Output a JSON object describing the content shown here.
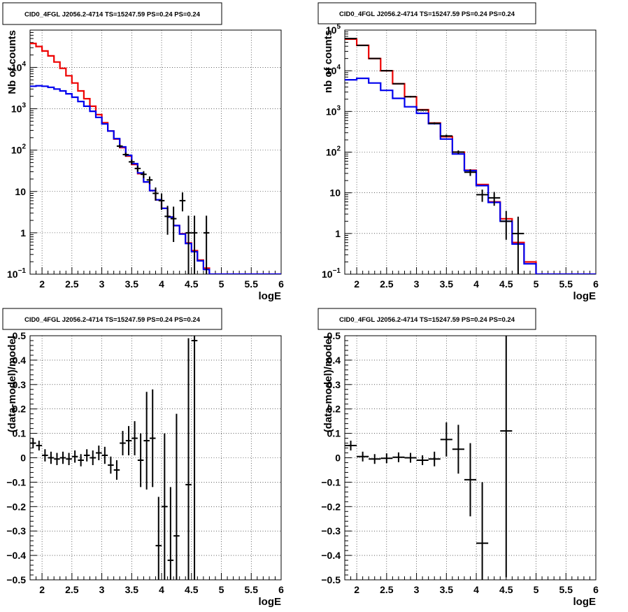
{
  "chart_data": [
    {
      "type": "line",
      "title": "CID0_4FGL J2056.2-4714 TS=15247.59 PS=0.24 PS=0.24",
      "xlabel": "logE",
      "ylabel": "Nb of counts",
      "xlim": [
        1.8,
        6
      ],
      "ylim": [
        0.1,
        80000
      ],
      "yscale": "log",
      "grid": true,
      "x_ticks": [
        "2",
        "2.5",
        "3",
        "3.5",
        "4",
        "4.5",
        "5",
        "5.5",
        "6"
      ],
      "y_ticks": [
        {
          "v": 0.1,
          "base": "10",
          "exp": "−1"
        },
        {
          "v": 1,
          "label": "1"
        },
        {
          "v": 10,
          "label": "10"
        },
        {
          "v": 100,
          "base": "10",
          "exp": "2"
        },
        {
          "v": 1000,
          "base": "10",
          "exp": "3"
        },
        {
          "v": 10000,
          "base": "10",
          "exp": "4"
        }
      ],
      "bin_width": 0.1,
      "x_bin_centers": [
        1.85,
        1.95,
        2.05,
        2.15,
        2.25,
        2.35,
        2.45,
        2.55,
        2.65,
        2.75,
        2.85,
        2.95,
        3.05,
        3.15,
        3.25,
        3.35,
        3.45,
        3.55,
        3.65,
        3.75,
        3.85,
        3.95,
        4.05,
        4.15,
        4.25,
        4.35,
        4.45,
        4.55,
        4.65,
        4.75,
        4.85,
        4.95,
        5.05,
        5.15,
        5.25,
        5.35,
        5.45,
        5.55,
        5.65,
        5.75,
        5.85,
        5.95
      ],
      "series": [
        {
          "color": "#ee0000",
          "values": [
            38000,
            32000,
            25000,
            19000,
            13500,
            9500,
            6300,
            4200,
            2700,
            1750,
            1150,
            720,
            460,
            290,
            185,
            115,
            72,
            45,
            27,
            17,
            10.5,
            6.3,
            3.9,
            2.4,
            1.5,
            0.95,
            0.57,
            0.37,
            0.22,
            0.14,
            0.1,
            0.1,
            0.1,
            0.1,
            0.1,
            0.1,
            0.1,
            0.1,
            0.1,
            0.1,
            0.1,
            0.1
          ]
        },
        {
          "color": "#0000ee",
          "values": [
            3500,
            3600,
            3500,
            3300,
            3000,
            2700,
            2300,
            1900,
            1500,
            1150,
            870,
            620,
            430,
            290,
            190,
            120,
            75,
            47,
            28,
            17,
            10.5,
            6.3,
            3.9,
            2.4,
            1.5,
            0.93,
            0.55,
            0.35,
            0.21,
            0.13,
            0.1,
            0.1,
            0.1,
            0.1,
            0.1,
            0.1,
            0.1,
            0.1,
            0.1,
            0.1,
            0.1,
            0.1
          ]
        }
      ],
      "data_points": [
        {
          "x": 3.3,
          "y": 125,
          "ylo": 114,
          "yhi": 136
        },
        {
          "x": 3.4,
          "y": 78,
          "ylo": 70,
          "yhi": 87
        },
        {
          "x": 3.5,
          "y": 52,
          "ylo": 45,
          "yhi": 59
        },
        {
          "x": 3.6,
          "y": 36,
          "ylo": 30,
          "yhi": 42
        },
        {
          "x": 3.7,
          "y": 26,
          "ylo": 21,
          "yhi": 31
        },
        {
          "x": 3.8,
          "y": 19,
          "ylo": 15,
          "yhi": 23
        },
        {
          "x": 3.9,
          "y": 9,
          "ylo": 6,
          "yhi": 12.5
        },
        {
          "x": 4.0,
          "y": 6,
          "ylo": 3.6,
          "yhi": 9
        },
        {
          "x": 4.1,
          "y": 2.5,
          "ylo": 0.9,
          "yhi": 4.5
        },
        {
          "x": 4.2,
          "y": 2.2,
          "ylo": 0.6,
          "yhi": 4.3
        },
        {
          "x": 4.35,
          "y": 6,
          "ylo": 3.3,
          "yhi": 9.5
        },
        {
          "x": 4.45,
          "y": 1,
          "ylo": 0.1,
          "yhi": 2.6
        },
        {
          "x": 4.55,
          "y": 1,
          "ylo": 0.1,
          "yhi": 2.6
        },
        {
          "x": 4.75,
          "y": 1,
          "ylo": 0.1,
          "yhi": 2.6
        }
      ]
    },
    {
      "type": "line",
      "title": "CID0_4FGL J2056.2-4714 TS=15247.59 PS=0.24 PS=0.24",
      "xlabel": "logE",
      "ylabel": "nb of counts",
      "xlim": [
        1.8,
        6
      ],
      "ylim": [
        0.1,
        100000
      ],
      "yscale": "log",
      "grid": true,
      "x_ticks": [
        "2",
        "2.5",
        "3",
        "3.5",
        "4",
        "4.5",
        "5",
        "5.5",
        "6"
      ],
      "y_ticks": [
        {
          "v": 0.1,
          "base": "10",
          "exp": "−1"
        },
        {
          "v": 1,
          "label": "1"
        },
        {
          "v": 10,
          "label": "10"
        },
        {
          "v": 100,
          "base": "10",
          "exp": "2"
        },
        {
          "v": 1000,
          "base": "10",
          "exp": "3"
        },
        {
          "v": 10000,
          "base": "10",
          "exp": "4"
        },
        {
          "v": 100000,
          "base": "10",
          "exp": "5"
        }
      ],
      "bin_width": 0.2,
      "x_bin_centers": [
        1.9,
        2.1,
        2.3,
        2.5,
        2.7,
        2.9,
        3.1,
        3.3,
        3.5,
        3.7,
        3.9,
        4.1,
        4.3,
        4.5,
        4.7,
        4.9,
        5.1,
        5.3,
        5.5,
        5.7,
        5.9
      ],
      "series": [
        {
          "color": "#ee0000",
          "values": [
            60000,
            42000,
            20000,
            10000,
            4800,
            2300,
            1100,
            520,
            240,
            100,
            36,
            16,
            6,
            2.3,
            0.6,
            0.2,
            0.1,
            0.1,
            0.1,
            0.1,
            0.1
          ]
        },
        {
          "color": "#0000ee",
          "values": [
            6000,
            6500,
            5000,
            3300,
            2100,
            1300,
            900,
            500,
            210,
            90,
            35,
            15,
            5.8,
            2,
            0.55,
            0.18,
            0.1,
            0.1,
            0.1,
            0.1,
            0.1
          ]
        }
      ],
      "data_points": [
        {
          "x": 1.9,
          "y": 62000,
          "ylo": 60000,
          "yhi": 64000
        },
        {
          "x": 2.1,
          "y": 42000,
          "ylo": 41000,
          "yhi": 43000
        },
        {
          "x": 2.3,
          "y": 20000,
          "ylo": 19500,
          "yhi": 20500
        },
        {
          "x": 2.5,
          "y": 10000,
          "ylo": 9700,
          "yhi": 10300
        },
        {
          "x": 2.7,
          "y": 4800,
          "ylo": 4650,
          "yhi": 4950
        },
        {
          "x": 2.9,
          "y": 2300,
          "ylo": 2200,
          "yhi": 2400
        },
        {
          "x": 3.1,
          "y": 1080,
          "ylo": 1030,
          "yhi": 1130
        },
        {
          "x": 3.3,
          "y": 510,
          "ylo": 480,
          "yhi": 540
        },
        {
          "x": 3.5,
          "y": 250,
          "ylo": 230,
          "yhi": 270
        },
        {
          "x": 3.7,
          "y": 100,
          "ylo": 90,
          "yhi": 110
        },
        {
          "x": 3.9,
          "y": 32,
          "ylo": 26,
          "yhi": 38
        },
        {
          "x": 4.1,
          "y": 9,
          "ylo": 6,
          "yhi": 12
        },
        {
          "x": 4.3,
          "y": 7.5,
          "ylo": 4.8,
          "yhi": 10.5
        },
        {
          "x": 4.5,
          "y": 2,
          "ylo": 0.7,
          "yhi": 3.6
        },
        {
          "x": 4.7,
          "y": 1,
          "ylo": 0.1,
          "yhi": 2.6
        }
      ]
    },
    {
      "type": "scatter",
      "title": "CID0_4FGL J2056.2-4714 TS=15247.59 PS=0.24 PS=0.24",
      "xlabel": "logE",
      "ylabel": "(data-model)/model",
      "xlim": [
        1.8,
        6
      ],
      "ylim": [
        -0.5,
        0.5
      ],
      "yscale": "linear",
      "grid": true,
      "x_ticks": [
        "2",
        "2.5",
        "3",
        "3.5",
        "4",
        "4.5",
        "5",
        "5.5",
        "6"
      ],
      "y_ticks": [
        {
          "v": -0.5,
          "label": "−0.5"
        },
        {
          "v": -0.4,
          "label": "−0.4"
        },
        {
          "v": -0.3,
          "label": "−0.3"
        },
        {
          "v": -0.2,
          "label": "−0.2"
        },
        {
          "v": -0.1,
          "label": "−0.1"
        },
        {
          "v": 0,
          "label": "0"
        },
        {
          "v": 0.1,
          "label": "0.1"
        },
        {
          "v": 0.2,
          "label": "0.2"
        },
        {
          "v": 0.3,
          "label": "0.3"
        },
        {
          "v": 0.4,
          "label": "0.4"
        },
        {
          "v": 0.5,
          "label": "0.5"
        }
      ],
      "bin_width": 0.1,
      "data_points": [
        {
          "x": 1.85,
          "y": 0.06,
          "err": 0.02
        },
        {
          "x": 1.95,
          "y": 0.05,
          "err": 0.02
        },
        {
          "x": 2.05,
          "y": 0.01,
          "err": 0.025
        },
        {
          "x": 2.15,
          "y": 0.0,
          "err": 0.025
        },
        {
          "x": 2.25,
          "y": -0.005,
          "err": 0.025
        },
        {
          "x": 2.35,
          "y": 0.0,
          "err": 0.025
        },
        {
          "x": 2.45,
          "y": -0.005,
          "err": 0.025
        },
        {
          "x": 2.55,
          "y": 0.005,
          "err": 0.025
        },
        {
          "x": 2.65,
          "y": -0.01,
          "err": 0.025
        },
        {
          "x": 2.75,
          "y": 0.01,
          "err": 0.025
        },
        {
          "x": 2.85,
          "y": 0.0,
          "err": 0.03
        },
        {
          "x": 2.95,
          "y": 0.02,
          "err": 0.03
        },
        {
          "x": 3.05,
          "y": 0.01,
          "err": 0.035
        },
        {
          "x": 3.15,
          "y": -0.03,
          "err": 0.035
        },
        {
          "x": 3.25,
          "y": -0.05,
          "err": 0.04
        },
        {
          "x": 3.35,
          "y": 0.06,
          "err": 0.05
        },
        {
          "x": 3.45,
          "y": 0.07,
          "err": 0.06
        },
        {
          "x": 3.55,
          "y": 0.08,
          "err": 0.07
        },
        {
          "x": 3.65,
          "y": -0.01,
          "err": 0.11
        },
        {
          "x": 3.75,
          "y": 0.07,
          "err": 0.2
        },
        {
          "x": 3.85,
          "y": 0.08,
          "err": 0.2
        },
        {
          "x": 3.95,
          "y": -0.36,
          "err": 0.2
        },
        {
          "x": 4.05,
          "y": -0.2,
          "err": 0.3
        },
        {
          "x": 4.15,
          "y": -0.42,
          "err": 0.3
        },
        {
          "x": 4.25,
          "y": -0.32,
          "err": 0.5
        },
        {
          "x": 4.45,
          "y": -0.11,
          "err": 0.6
        },
        {
          "x": 4.55,
          "y": 0.48,
          "err": 1.0
        }
      ]
    },
    {
      "type": "scatter",
      "title": "CID0_4FGL J2056.2-4714 TS=15247.59 PS=0.24 PS=0.24",
      "xlabel": "logE",
      "ylabel": "(data-model)/model",
      "xlim": [
        1.8,
        6
      ],
      "ylim": [
        -0.5,
        0.5
      ],
      "yscale": "linear",
      "grid": true,
      "x_ticks": [
        "2",
        "2.5",
        "3",
        "3.5",
        "4",
        "4.5",
        "5",
        "5.5",
        "6"
      ],
      "y_ticks": [
        {
          "v": -0.5,
          "label": "−0.5"
        },
        {
          "v": -0.4,
          "label": "−0.4"
        },
        {
          "v": -0.3,
          "label": "−0.3"
        },
        {
          "v": -0.2,
          "label": "−0.2"
        },
        {
          "v": -0.1,
          "label": "−0.1"
        },
        {
          "v": 0,
          "label": "0"
        },
        {
          "v": 0.1,
          "label": "0.1"
        },
        {
          "v": 0.2,
          "label": "0.2"
        },
        {
          "v": 0.3,
          "label": "0.3"
        },
        {
          "v": 0.4,
          "label": "0.4"
        },
        {
          "v": 0.5,
          "label": "0.5"
        }
      ],
      "bin_width": 0.2,
      "data_points": [
        {
          "x": 1.9,
          "y": 0.05,
          "err": 0.02
        },
        {
          "x": 2.1,
          "y": 0.005,
          "err": 0.02
        },
        {
          "x": 2.3,
          "y": -0.005,
          "err": 0.02
        },
        {
          "x": 2.5,
          "y": -0.002,
          "err": 0.02
        },
        {
          "x": 2.7,
          "y": 0.002,
          "err": 0.02
        },
        {
          "x": 2.9,
          "y": 0.0,
          "err": 0.02
        },
        {
          "x": 3.1,
          "y": -0.01,
          "err": 0.02
        },
        {
          "x": 3.3,
          "y": -0.005,
          "err": 0.03
        },
        {
          "x": 3.5,
          "y": 0.075,
          "err": 0.07
        },
        {
          "x": 3.7,
          "y": 0.035,
          "err": 0.1
        },
        {
          "x": 3.9,
          "y": -0.09,
          "err": 0.15
        },
        {
          "x": 4.1,
          "y": -0.35,
          "err": 0.25
        },
        {
          "x": 4.5,
          "y": 0.11,
          "err": 0.6
        }
      ]
    }
  ]
}
